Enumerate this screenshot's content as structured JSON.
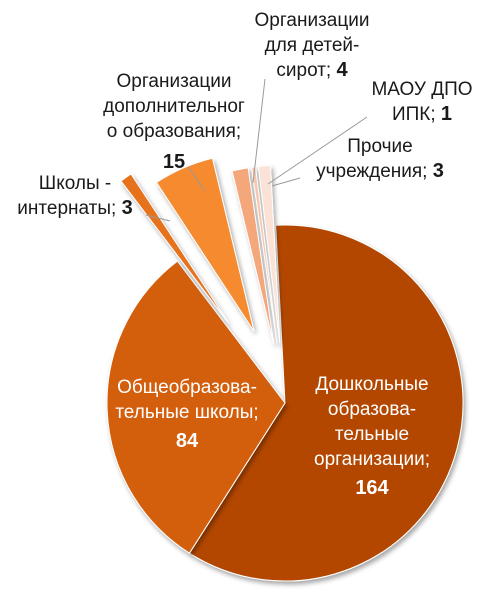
{
  "chart_data": {
    "type": "pie",
    "title": "",
    "slices": [
      {
        "label_lines": [
          "Дошкольные",
          "образова-",
          "тельные",
          "организации;"
        ],
        "value": 164,
        "value_text": "164",
        "color": "#b34700",
        "text_color": "light"
      },
      {
        "label_lines": [
          "Общеобразова-",
          "тельные школы;"
        ],
        "value": 84,
        "value_text": "84",
        "color": "#d35f11",
        "text_color": "light"
      },
      {
        "label_lines": [
          "Школы -",
          "интернаты;"
        ],
        "value": 3,
        "value_text": "3",
        "color": "#e7721d",
        "text_color": "dark"
      },
      {
        "label_lines": [
          "Организации",
          "дополнительног",
          "о образования;"
        ],
        "value": 15,
        "value_text": "15",
        "color": "#f58a2f",
        "text_color": "dark"
      },
      {
        "label_lines": [
          "Организации",
          "для детей-",
          "сирот;"
        ],
        "value": 4,
        "value_text": "4",
        "color": "#f4a77a",
        "text_color": "dark"
      },
      {
        "label_lines": [
          "МАОУ ДПО",
          "ИПК;"
        ],
        "value": 1,
        "value_text": "1",
        "color": "#f8c7ab",
        "text_color": "dark"
      },
      {
        "label_lines": [
          "Прочие",
          "учреждения;"
        ],
        "value": 3,
        "value_text": "3",
        "color": "#fbe2d6",
        "text_color": "dark"
      }
    ]
  }
}
